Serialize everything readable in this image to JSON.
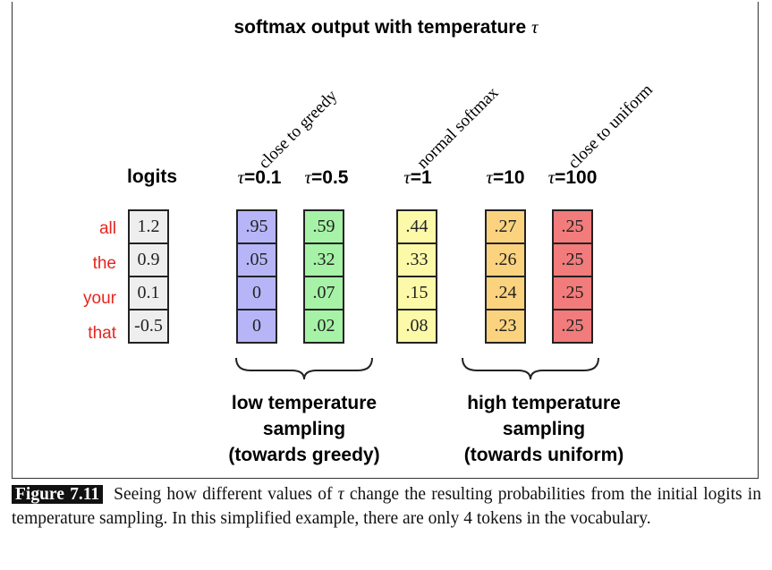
{
  "title": {
    "text": "softmax output with temperature ",
    "symbol": "τ"
  },
  "annotations": [
    {
      "text": "close to greedy"
    },
    {
      "text": "normal softmax"
    },
    {
      "text": "close to uniform"
    }
  ],
  "headers": {
    "logits": "logits",
    "t01": "=0.1",
    "t05": "=0.5",
    "t1": "=1",
    "t10": "=10",
    "t100": "=100",
    "tau": "τ"
  },
  "tokens": [
    "all",
    "the",
    "your",
    "that"
  ],
  "columns": [
    {
      "name": "logits",
      "color": "#eeeeee",
      "values": [
        "1.2",
        "0.9",
        "0.1",
        "-0.5"
      ]
    },
    {
      "name": "t0.1",
      "color": "#b7b5f7",
      "values": [
        ".95",
        ".05",
        "0",
        "0"
      ]
    },
    {
      "name": "t0.5",
      "color": "#a6f2a6",
      "values": [
        ".59",
        ".32",
        ".07",
        ".02"
      ]
    },
    {
      "name": "t1",
      "color": "#fcfaa8",
      "values": [
        ".44",
        ".33",
        ".15",
        ".08"
      ]
    },
    {
      "name": "t10",
      "color": "#fbd37f",
      "values": [
        ".27",
        ".26",
        ".24",
        ".23"
      ]
    },
    {
      "name": "t100",
      "color": "#f27b7b",
      "values": [
        ".25",
        ".25",
        ".25",
        ".25"
      ]
    }
  ],
  "groups": {
    "low": [
      "low temperature",
      "sampling",
      "(towards greedy)"
    ],
    "high": [
      "high temperature",
      "sampling",
      "(towards uniform)"
    ]
  },
  "caption": {
    "label": "Figure 7.11",
    "text_a": "Seeing how different values of ",
    "symbol": "τ",
    "text_b": " change the resulting probabilities from the initial logits in temperature sampling. In this simplified example, there are only 4 tokens in the vocabulary."
  }
}
